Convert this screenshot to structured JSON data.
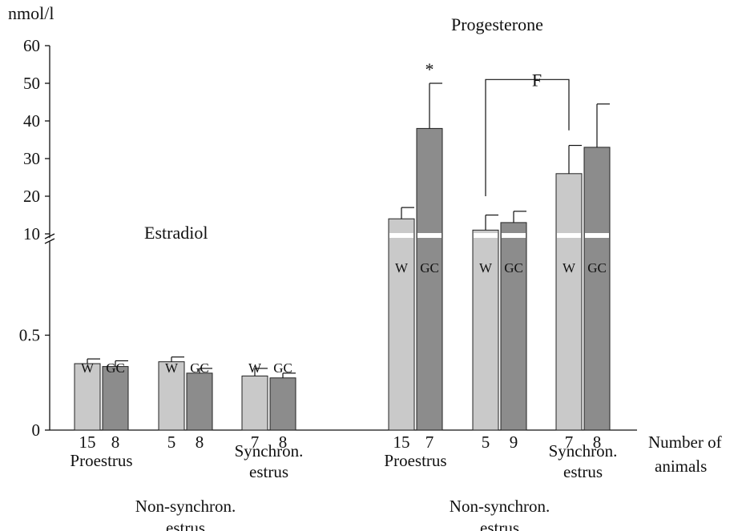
{
  "chart_data": {
    "type": "bar",
    "ylabel": "nmol/l",
    "axis_break": true,
    "lower_yticks": [
      "0",
      "0.5"
    ],
    "upper_yticks": [
      "10",
      "20",
      "30",
      "40",
      "50",
      "60"
    ],
    "lower_ylim": [
      0,
      1
    ],
    "upper_ylim": [
      10,
      60
    ],
    "bar_labels": {
      "W": "W",
      "GC": "GC"
    },
    "colors": {
      "W": "#c9c9c9",
      "GC": "#8c8c8c"
    },
    "hormones": [
      {
        "name": "Estradiol",
        "scale": "lower",
        "groups": [
          {
            "label_lines": [
              "Proestrus"
            ],
            "bars": [
              {
                "series": "W",
                "value": 0.35,
                "error": 0.025,
                "n": "15"
              },
              {
                "series": "GC",
                "value": 0.335,
                "error": 0.03,
                "n": "8"
              }
            ]
          },
          {
            "label_lines": [
              "Non-synchron.",
              "estrus"
            ],
            "bars": [
              {
                "series": "W",
                "value": 0.36,
                "error": 0.025,
                "n": "5"
              },
              {
                "series": "GC",
                "value": 0.3,
                "error": 0.025,
                "n": "8"
              }
            ]
          },
          {
            "label_lines": [
              "Synchron.",
              "estrus"
            ],
            "bars": [
              {
                "series": "W",
                "value": 0.285,
                "error": 0.04,
                "n": "7"
              },
              {
                "series": "GC",
                "value": 0.275,
                "error": 0.025,
                "n": "8"
              }
            ]
          }
        ]
      },
      {
        "name": "Progesterone",
        "scale": "upper",
        "groups": [
          {
            "label_lines": [
              "Proestrus"
            ],
            "bars": [
              {
                "series": "W",
                "value": 14,
                "error": 3,
                "n": "15"
              },
              {
                "series": "GC",
                "value": 38,
                "error": 12,
                "n": "7"
              }
            ]
          },
          {
            "label_lines": [
              "Non-synchron.",
              "estrus"
            ],
            "bars": [
              {
                "series": "W",
                "value": 11,
                "error": 4,
                "n": "5"
              },
              {
                "series": "GC",
                "value": 13,
                "error": 3,
                "n": "9"
              }
            ]
          },
          {
            "label_lines": [
              "Synchron.",
              "estrus"
            ],
            "bars": [
              {
                "series": "W",
                "value": 26,
                "error": 7.5,
                "n": "7"
              },
              {
                "series": "GC",
                "value": 33,
                "error": 11.5,
                "n": "8"
              }
            ]
          }
        ]
      }
    ],
    "annotations": {
      "asterisk": "*",
      "bracket": "F"
    },
    "n_label_lines": [
      "Number of",
      "animals"
    ]
  }
}
